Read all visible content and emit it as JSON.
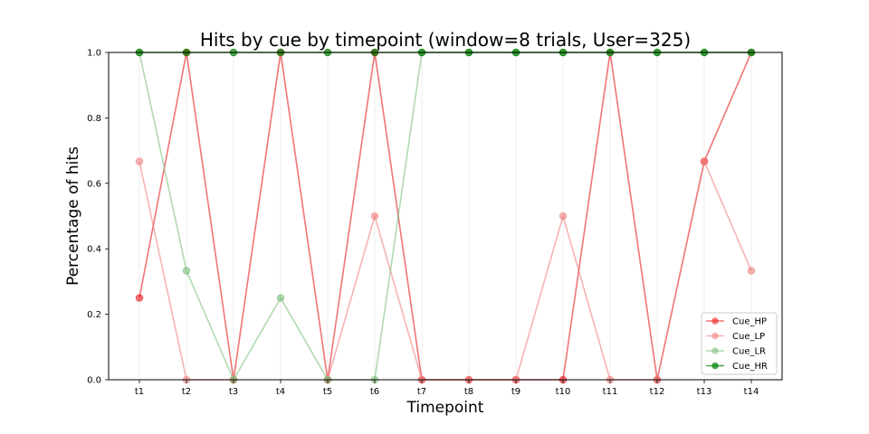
{
  "chart_data": {
    "type": "line",
    "title": "Hits by cue by timepoint (window=8 trials, User=325)",
    "xlabel": "Timepoint",
    "ylabel": "Percentage of hits",
    "ylim": [
      0,
      1
    ],
    "yticks": [
      "0.0",
      "0.2",
      "0.4",
      "0.6",
      "0.8",
      "1.0"
    ],
    "categories": [
      "t1",
      "t2",
      "t3",
      "t4",
      "t5",
      "t6",
      "t7",
      "t8",
      "t9",
      "t10",
      "t11",
      "t12",
      "t13",
      "t14"
    ],
    "grid": "vertical",
    "legend_position": "lower-right",
    "series": [
      {
        "name": "Cue_HP",
        "color": "#e8191c",
        "alpha": 0.6,
        "values": [
          0.25,
          1.0,
          0.0,
          1.0,
          0.0,
          1.0,
          0.0,
          0.0,
          0.0,
          0.0,
          1.0,
          0.0,
          0.667,
          1.0
        ]
      },
      {
        "name": "Cue_LP",
        "color": "#f08080",
        "alpha": 0.6,
        "values": [
          0.667,
          0.0,
          0.0,
          1.0,
          0.0,
          0.5,
          0.0,
          0.0,
          0.0,
          0.5,
          0.0,
          0.0,
          0.667,
          0.333
        ]
      },
      {
        "name": "Cue_LR",
        "color": "#7dc07d",
        "alpha": 0.6,
        "values": [
          1.0,
          0.333,
          0.0,
          0.25,
          0.0,
          0.0,
          1.0,
          1.0,
          1.0,
          1.0,
          1.0,
          1.0,
          1.0,
          1.0
        ]
      },
      {
        "name": "Cue_HR",
        "color": "#008000",
        "alpha": 0.7,
        "values": [
          1.0,
          1.0,
          1.0,
          1.0,
          1.0,
          1.0,
          1.0,
          1.0,
          1.0,
          1.0,
          1.0,
          1.0,
          1.0,
          1.0
        ]
      }
    ]
  }
}
